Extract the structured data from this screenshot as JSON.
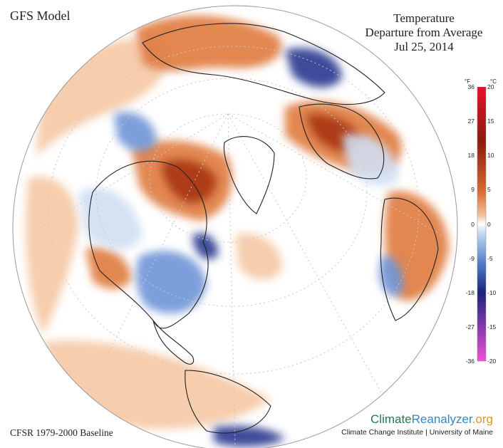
{
  "header": {
    "model": "GFS Model",
    "title_line1": "Temperature",
    "title_line2": "Departure from Average",
    "date": "Jul 25, 2014"
  },
  "footer": {
    "baseline": "CFSR 1979-2000 Baseline",
    "brand_climate": "Climate",
    "brand_reanalyzer": "Reanalyzer",
    "brand_org": ".org",
    "brand_sub": "Climate Change Institute | University of Maine"
  },
  "legend": {
    "unit_f": "°F",
    "unit_c": "°C",
    "ticks": [
      {
        "f": "36",
        "c": "20",
        "value_c": 20
      },
      {
        "f": "27",
        "c": "15",
        "value_c": 15
      },
      {
        "f": "18",
        "c": "10",
        "value_c": 10
      },
      {
        "f": "9",
        "c": "5",
        "value_c": 5
      },
      {
        "f": "0",
        "c": "0",
        "value_c": 0
      },
      {
        "f": "-9",
        "c": "-5",
        "value_c": -5
      },
      {
        "f": "-18",
        "c": "-10",
        "value_c": -10
      },
      {
        "f": "-27",
        "c": "-15",
        "value_c": -15
      },
      {
        "f": "-36",
        "c": "-20",
        "value_c": -20
      }
    ],
    "range_c": [
      -20,
      20
    ],
    "colors": {
      "hot_extreme": "#e8102a",
      "hot_dark": "#8b1a0e",
      "warm": "#d8692f",
      "warm_light": "#f6c39c",
      "neutral": "#ffffff",
      "cool_light": "#c9dcf2",
      "cool": "#4a78c4",
      "cold_dark": "#1a237e",
      "cold_extreme": "#f04fd8"
    }
  },
  "map": {
    "projection": "orthographic-north-polar",
    "colors": {
      "land_outline": "#222222",
      "graticule": "#c8c8c8",
      "globe_edge": "#9a9a9a",
      "anomaly_warm": "#e07a3f",
      "anomaly_warm_light": "#f5c8a4",
      "anomaly_hot": "#a83412",
      "anomaly_cool": "#6f93d6",
      "anomaly_cool_light": "#cfdff3",
      "anomaly_cold": "#27368f"
    }
  }
}
